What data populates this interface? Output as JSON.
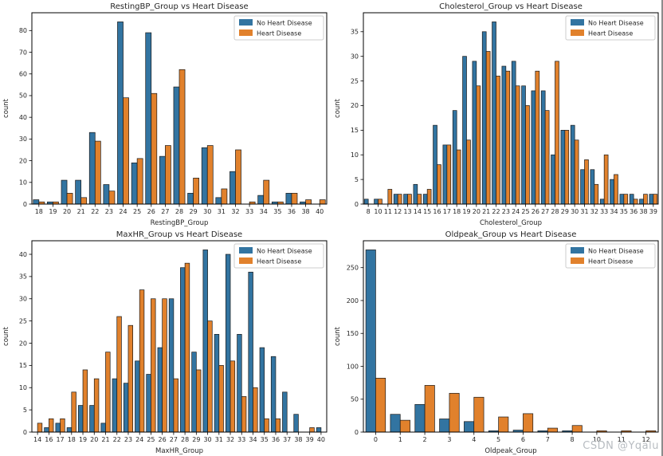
{
  "figure": {
    "watermark": "CSDN @Yqalu",
    "background_color": "#ffffff",
    "bar_edge_color": "#1a1a1a",
    "no_disease_color": "#3274a1",
    "disease_color": "#e1812c"
  },
  "chart_data": [
    {
      "type": "bar",
      "title": "RestingBP_Group vs Heart Disease",
      "xlabel": "RestingBP_Group",
      "ylabel": "count",
      "grid": false,
      "legend_position": "upper right",
      "legend_labels": [
        "No Heart Disease",
        "Heart Disease"
      ],
      "categories": [
        "18",
        "19",
        "20",
        "21",
        "22",
        "23",
        "24",
        "25",
        "26",
        "27",
        "28",
        "29",
        "30",
        "31",
        "32",
        "33",
        "34",
        "35",
        "36",
        "38",
        "40"
      ],
      "series": [
        {
          "name": "No Heart Disease",
          "color": "#3274a1",
          "values": [
            2,
            1,
            11,
            11,
            33,
            9,
            84,
            19,
            79,
            22,
            54,
            5,
            26,
            3,
            15,
            0,
            4,
            1,
            5,
            1,
            0
          ]
        },
        {
          "name": "Heart Disease",
          "color": "#e1812c",
          "values": [
            1,
            1,
            5,
            3,
            29,
            6,
            49,
            21,
            51,
            27,
            62,
            12,
            27,
            7,
            25,
            1,
            11,
            1,
            5,
            2,
            2
          ]
        }
      ],
      "yticks": [
        0,
        10,
        20,
        30,
        40,
        50,
        60,
        70,
        80
      ],
      "ylim": [
        0,
        88.2
      ]
    },
    {
      "type": "bar",
      "title": "Cholesterol_Group vs Heart Disease",
      "xlabel": "Cholesterol_Group",
      "ylabel": "count",
      "grid": false,
      "legend_position": "upper right",
      "legend_labels": [
        "No Heart Disease",
        "Heart Disease"
      ],
      "categories": [
        "8",
        "10",
        "11",
        "12",
        "13",
        "14",
        "15",
        "16",
        "17",
        "18",
        "19",
        "20",
        "21",
        "22",
        "23",
        "24",
        "25",
        "26",
        "27",
        "28",
        "29",
        "30",
        "31",
        "32",
        "33",
        "34",
        "35",
        "36",
        "38",
        "39"
      ],
      "series": [
        {
          "name": "No Heart Disease",
          "color": "#3274a1",
          "values": [
            1,
            1,
            0,
            2,
            2,
            4,
            2,
            16,
            12,
            19,
            30,
            29,
            35,
            37,
            28,
            29,
            24,
            23,
            23,
            10,
            15,
            16,
            7,
            7,
            1,
            5,
            2,
            2,
            1,
            2
          ]
        },
        {
          "name": "Heart Disease",
          "color": "#e1812c",
          "values": [
            0,
            1,
            3,
            2,
            2,
            2,
            3,
            8,
            12,
            11,
            13,
            24,
            31,
            26,
            27,
            24,
            20,
            27,
            19,
            29,
            15,
            13,
            9,
            4,
            10,
            6,
            2,
            1,
            2,
            2
          ]
        }
      ],
      "yticks": [
        0,
        5,
        10,
        15,
        20,
        25,
        30,
        35
      ],
      "ylim": [
        0,
        38.85
      ]
    },
    {
      "type": "bar",
      "title": "MaxHR_Group vs Heart Disease",
      "xlabel": "MaxHR_Group",
      "ylabel": "count",
      "grid": false,
      "legend_position": "upper right",
      "legend_labels": [
        "No Heart Disease",
        "Heart Disease"
      ],
      "categories": [
        "14",
        "16",
        "17",
        "18",
        "19",
        "20",
        "21",
        "22",
        "23",
        "24",
        "25",
        "26",
        "27",
        "28",
        "29",
        "30",
        "31",
        "32",
        "33",
        "34",
        "35",
        "36",
        "37",
        "38",
        "39",
        "40"
      ],
      "series": [
        {
          "name": "No Heart Disease",
          "color": "#3274a1",
          "values": [
            0,
            1,
            2,
            1,
            6,
            6,
            2,
            12,
            11,
            16,
            13,
            19,
            30,
            37,
            18,
            41,
            22,
            40,
            22,
            36,
            19,
            17,
            9,
            4,
            0,
            1
          ]
        },
        {
          "name": "Heart Disease",
          "color": "#e1812c",
          "values": [
            2,
            3,
            3,
            9,
            14,
            12,
            18,
            26,
            24,
            32,
            30,
            30,
            12,
            38,
            14,
            25,
            15,
            16,
            8,
            10,
            3,
            3,
            0,
            0,
            1,
            0
          ]
        }
      ],
      "yticks": [
        0,
        5,
        10,
        15,
        20,
        25,
        30,
        35,
        40
      ],
      "ylim": [
        0,
        43.05
      ]
    },
    {
      "type": "bar",
      "title": "Oldpeak_Group vs Heart Disease",
      "xlabel": "Oldpeak_Group",
      "ylabel": "count",
      "grid": false,
      "legend_position": "upper right",
      "legend_labels": [
        "No Heart Disease",
        "Heart Disease"
      ],
      "categories": [
        "0",
        "1",
        "2",
        "3",
        "4",
        "5",
        "6",
        "7",
        "8",
        "10",
        "11",
        "12"
      ],
      "series": [
        {
          "name": "No Heart Disease",
          "color": "#3274a1",
          "values": [
            277,
            27,
            42,
            20,
            16,
            2,
            3,
            2,
            2,
            0,
            0,
            0
          ]
        },
        {
          "name": "Heart Disease",
          "color": "#e1812c",
          "values": [
            82,
            18,
            71,
            59,
            53,
            23,
            28,
            6,
            10,
            2,
            2,
            2
          ]
        }
      ],
      "yticks": [
        0,
        50,
        100,
        150,
        200,
        250
      ],
      "ylim": [
        0,
        290.85
      ]
    }
  ]
}
